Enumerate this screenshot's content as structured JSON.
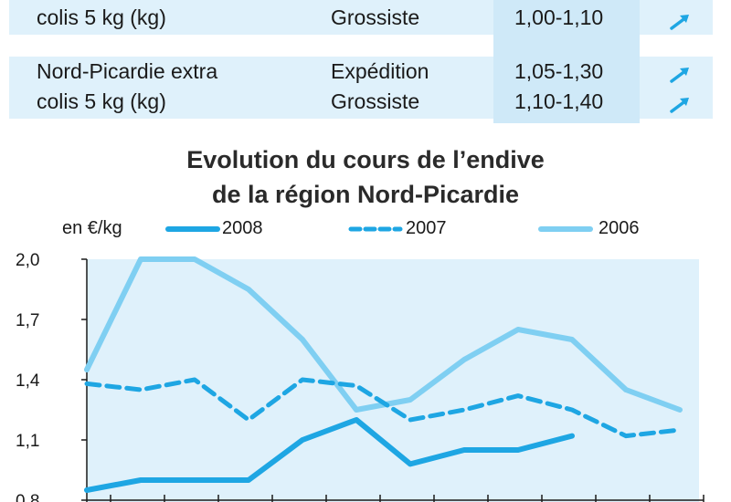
{
  "table": {
    "rows": [
      {
        "region": "colis 5 kg (kg)",
        "type": "Grossiste",
        "price": "1,00-1,10"
      },
      {
        "region": "Nord-Picardie extra",
        "type": "Expédition",
        "price": "1,05-1,30"
      },
      {
        "region": "colis 5 kg (kg)",
        "type": "Grossiste",
        "price": "1,10-1,40"
      }
    ],
    "trend_icon": "arrow-up-right-icon"
  },
  "chart_data": {
    "type": "line",
    "title": "Evolution du cours de l’endive",
    "subtitle": "de la région Nord-Picardie",
    "ylabel": "en €/kg",
    "xlabel": "",
    "ylim": [
      0.8,
      2.0
    ],
    "yticks": [
      "2,0",
      "1,7",
      "1,4",
      "1,1",
      "0,8"
    ],
    "ytick_values": [
      2.0,
      1.7,
      1.4,
      1.1,
      0.8
    ],
    "x": [
      1,
      2,
      3,
      4,
      5,
      6,
      7,
      8,
      9,
      10,
      11,
      12
    ],
    "legend_position": "top",
    "grid": false,
    "series": [
      {
        "name": "2008",
        "style": "solid",
        "color": "#1ea6e3",
        "values": [
          0.85,
          0.9,
          0.9,
          0.9,
          1.1,
          1.2,
          0.98,
          1.05,
          1.05,
          1.12,
          null,
          null
        ]
      },
      {
        "name": "2007",
        "style": "dashed",
        "color": "#1ea6e3",
        "values": [
          1.38,
          1.35,
          1.4,
          1.2,
          1.4,
          1.37,
          1.2,
          1.25,
          1.32,
          1.25,
          1.12,
          1.15
        ]
      },
      {
        "name": "2006",
        "style": "solid-light",
        "color": "#7fcff2",
        "values": [
          1.45,
          2.0,
          2.0,
          1.85,
          1.6,
          1.25,
          1.3,
          1.5,
          1.65,
          1.6,
          1.35,
          1.25
        ]
      }
    ]
  },
  "colors": {
    "plot_background": "#dff1fb",
    "table_background": "#dff1fb",
    "price_column": "#cfe9f8",
    "axis": "#1a1a1a"
  }
}
